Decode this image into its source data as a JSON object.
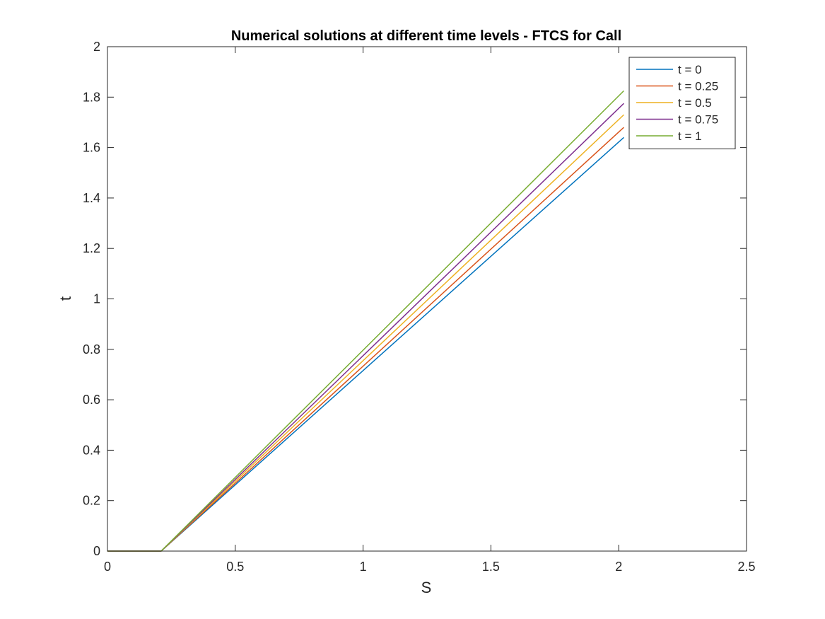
{
  "chart_data": {
    "type": "line",
    "title": "Numerical solutions at different time levels - FTCS for Call",
    "xlabel": "S",
    "ylabel": "t",
    "xlim": [
      0,
      2.5
    ],
    "ylim": [
      0,
      2
    ],
    "xticks": [
      0,
      0.5,
      1,
      1.5,
      2,
      2.5
    ],
    "xtick_labels": [
      "0",
      "0.5",
      "1",
      "1.5",
      "2",
      "2.5"
    ],
    "yticks": [
      0,
      0.2,
      0.4,
      0.6,
      0.8,
      1,
      1.2,
      1.4,
      1.6,
      1.8,
      2
    ],
    "ytick_labels": [
      "0",
      "0.2",
      "0.4",
      "0.6",
      "0.8",
      "1",
      "1.2",
      "1.4",
      "1.6",
      "1.8",
      "2"
    ],
    "grid": false,
    "box": true,
    "legend_position": "top-right",
    "series": [
      {
        "name": "t = 0",
        "color": "#0072BD",
        "x": [
          0,
          0.2,
          0.21,
          2.02
        ],
        "y": [
          0,
          0,
          0,
          1.64
        ]
      },
      {
        "name": "t = 0.25",
        "color": "#D95319",
        "x": [
          0,
          0.2,
          0.21,
          2.02
        ],
        "y": [
          0,
          0,
          0,
          1.68
        ]
      },
      {
        "name": "t = 0.5",
        "color": "#EDB120",
        "x": [
          0,
          0.2,
          0.21,
          2.02
        ],
        "y": [
          0,
          0,
          0,
          1.73
        ]
      },
      {
        "name": "t = 0.75",
        "color": "#7E2F8E",
        "x": [
          0,
          0.2,
          0.21,
          2.02
        ],
        "y": [
          0,
          0,
          0,
          1.775
        ]
      },
      {
        "name": "t = 1",
        "color": "#77AC30",
        "x": [
          0,
          0.2,
          0.21,
          2.02
        ],
        "y": [
          0,
          0,
          0,
          1.825
        ]
      }
    ]
  }
}
